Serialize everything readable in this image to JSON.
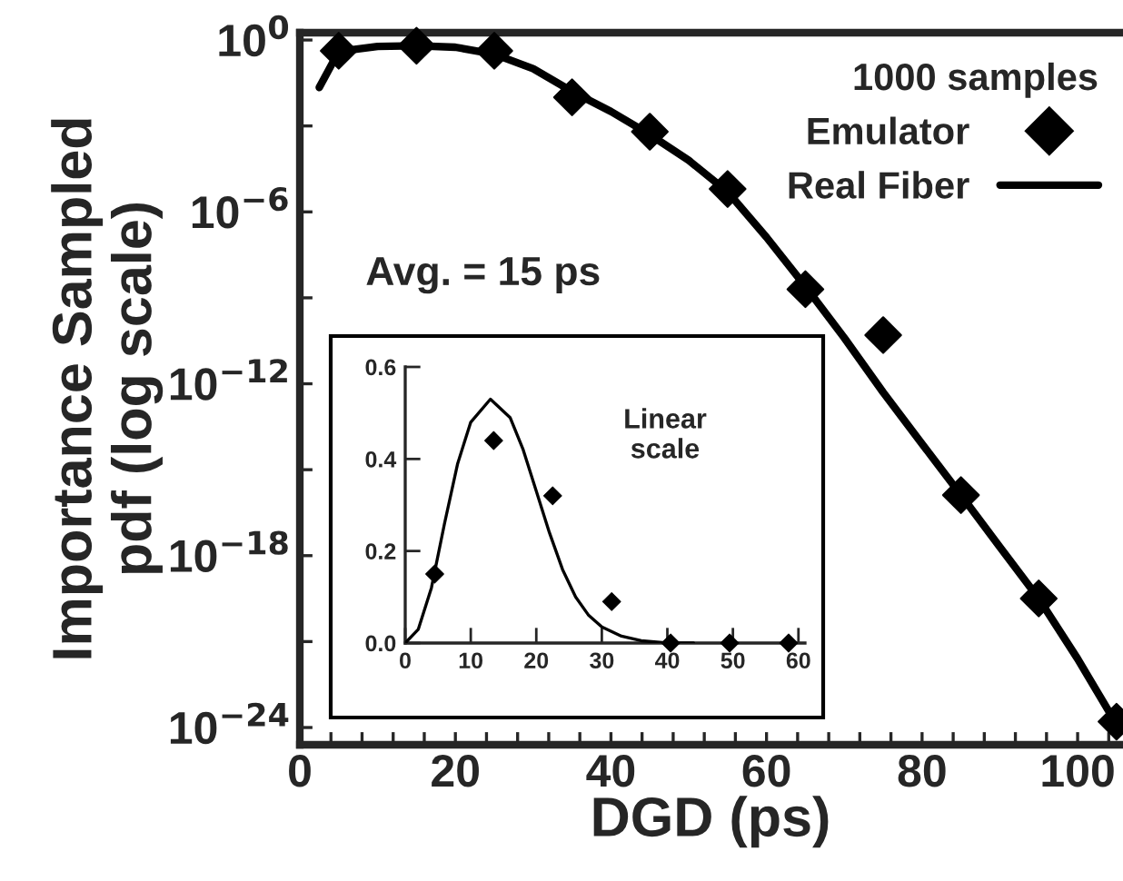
{
  "chart_data": [
    {
      "type": "scatter",
      "xlabel": "DGD (ps)",
      "ylabel": "Importance Sampled\npdf (log scale)",
      "log": "y",
      "legend": "top right",
      "legend_title": "1000 samples",
      "xlim": [
        0,
        105.6
      ],
      "ylim": [
        2.5e-25,
        1.8
      ],
      "xticks": [
        0,
        {
          "value": 4,
          "label": null
        },
        {
          "value": 8,
          "label": null
        },
        {
          "value": 12,
          "label": null
        },
        {
          "value": 16,
          "label": null
        },
        20,
        {
          "value": 24,
          "label": null
        },
        {
          "value": 28,
          "label": null
        },
        {
          "value": 32,
          "label": null
        },
        {
          "value": 36,
          "label": null
        },
        40,
        {
          "value": 44,
          "label": null
        },
        {
          "value": 48,
          "label": null
        },
        {
          "value": 52,
          "label": null
        },
        {
          "value": 56,
          "label": null
        },
        60,
        {
          "value": 64,
          "label": null
        },
        {
          "value": 68,
          "label": null
        },
        {
          "value": 72,
          "label": null
        },
        {
          "value": 76,
          "label": null
        },
        80,
        {
          "value": 84,
          "label": null
        },
        {
          "value": 88,
          "label": null
        },
        {
          "value": 92,
          "label": null
        },
        {
          "value": 96,
          "label": null
        },
        100,
        {
          "value": 104,
          "label": null
        }
      ],
      "yticks": [
        {
          "value": 1,
          "label": "10$^{0}$"
        },
        {
          "value": 0.001,
          "label": null
        },
        {
          "value": 1e-06,
          "label": "10$^{−6}$"
        },
        {
          "value": 1e-09,
          "label": null
        },
        {
          "value": 1e-12,
          "label": "10$^{−12}$"
        },
        {
          "value": 1e-15,
          "label": null
        },
        {
          "value": 1e-18,
          "label": "10$^{−18}$"
        },
        {
          "value": 1e-21,
          "label": null
        },
        {
          "value": 1e-24,
          "label": "10$^{−24}$"
        }
      ],
      "annotations": [
        "Avg. = 15 ps"
      ],
      "series": [
        {
          "name": "Emulator",
          "marker": "diamond",
          "color": "#000000",
          "x": [
            5,
            15,
            25,
            35,
            45,
            55,
            65,
            75,
            85,
            95,
            105
          ],
          "values": [
            0.42,
            0.63,
            0.42,
            0.01,
            0.00063,
            6.3e-06,
            2e-09,
            5e-11,
            1.3e-16,
            3.2e-20,
            1.6e-24
          ]
        },
        {
          "name": "Real Fiber",
          "type": "line",
          "marker": "none",
          "color": "#000000",
          "x": [
            2.5,
            5,
            10,
            15,
            20,
            25,
            30,
            35,
            40,
            45,
            50,
            55,
            60,
            65,
            70,
            75,
            80,
            85,
            90,
            95,
            100,
            105
          ],
          "values": [
            0.022,
            0.4,
            0.6,
            0.63,
            0.56,
            0.32,
            0.1,
            0.016,
            0.0032,
            0.0005,
            6.3e-05,
            5e-06,
            1.3e-07,
            2.5e-09,
            4e-11,
            5e-13,
            8e-15,
            1.3e-16,
            2e-18,
            3.2e-20,
            2.5e-22,
            1.3e-24
          ]
        }
      ]
    },
    {
      "type": "scatter",
      "xlim": [
        0,
        61
      ],
      "ylim": [
        0,
        0.6
      ],
      "xticks": [
        0,
        10,
        20,
        30,
        40,
        50,
        60
      ],
      "yticks": [
        {
          "value": 0,
          "label": "0.0"
        },
        {
          "value": 0.2,
          "label": "0.2"
        },
        {
          "value": 0.4,
          "label": "0.4"
        },
        {
          "value": 0.6,
          "label": "0.6"
        }
      ],
      "annotations": [
        "Linear\nscale"
      ],
      "series": [
        {
          "marker": "diamond",
          "color": "#000000",
          "x": [
            4.5,
            13.5,
            22.5,
            31.5,
            40.5,
            49.5,
            58.5
          ],
          "values": [
            0.15,
            0.44,
            0.32,
            0.09,
            0.0,
            0.0,
            0.0
          ]
        },
        {
          "type": "line",
          "marker": "none",
          "color": "#000000",
          "x": [
            0,
            2,
            4,
            6,
            8,
            10,
            13,
            16,
            18,
            20,
            22,
            24,
            26,
            28,
            30,
            33,
            36,
            40,
            44
          ],
          "values": [
            0,
            0.03,
            0.12,
            0.26,
            0.39,
            0.48,
            0.53,
            0.49,
            0.42,
            0.33,
            0.24,
            0.16,
            0.1,
            0.06,
            0.035,
            0.015,
            0.005,
            0,
            0
          ]
        }
      ]
    }
  ]
}
